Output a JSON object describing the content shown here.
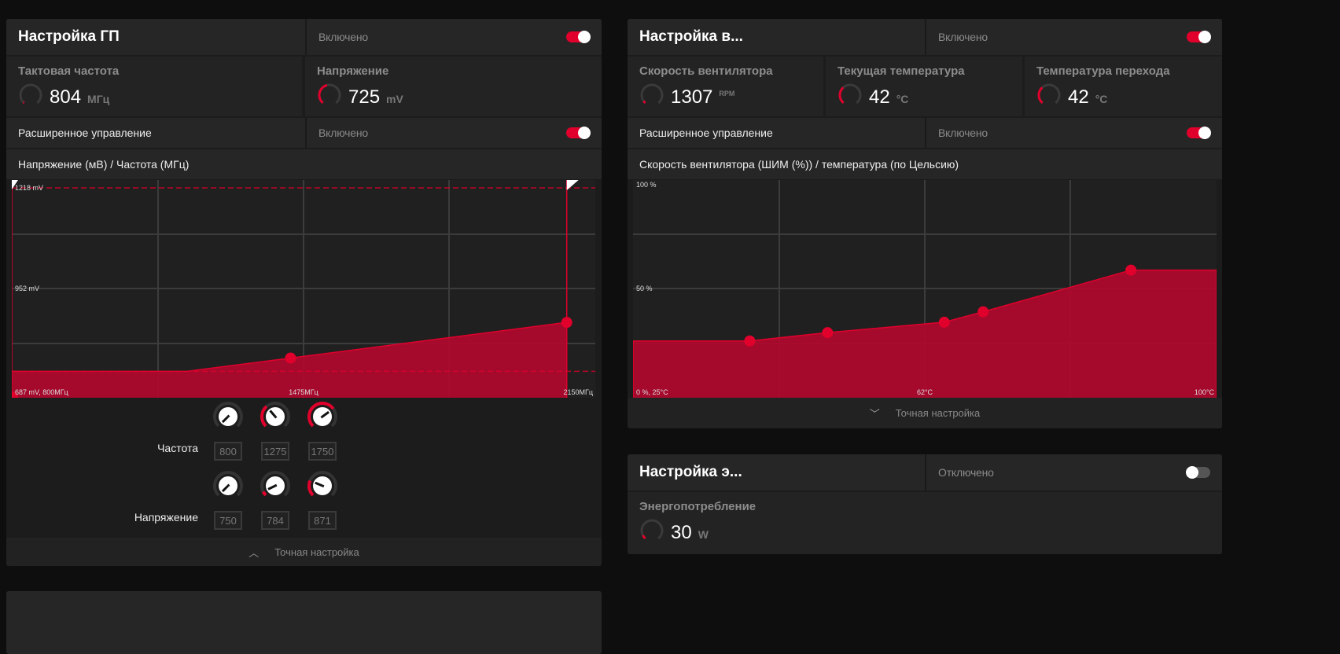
{
  "accent": "#e0002b",
  "fill": "#ad0a2e",
  "gpu": {
    "title": "Настройка ГП",
    "status": "Включено",
    "enabled": true,
    "stats": [
      {
        "label": "Тактовая частота",
        "value": "804",
        "unit": "МГц",
        "gauge": 0.02
      },
      {
        "label": "Напряжение",
        "value": "725",
        "unit": "mV",
        "gauge": 0.45
      }
    ],
    "advanced": {
      "label": "Расширенное управление",
      "status": "Включено",
      "enabled": true
    },
    "chart_title": "Напряжение (мВ) / Частота (МГц)",
    "footer": "Точная настройка",
    "knobs": {
      "freq_label": "Частота",
      "freq": [
        {
          "value": "800",
          "level": 0
        },
        {
          "value": "1275",
          "level": 0.35
        },
        {
          "value": "1750",
          "level": 0.7
        }
      ],
      "volt_label": "Напряжение",
      "volt": [
        {
          "value": "750",
          "level": 0
        },
        {
          "value": "784",
          "level": 0.07
        },
        {
          "value": "871",
          "level": 0.25
        }
      ]
    }
  },
  "fan": {
    "title": "Настройка в...",
    "status": "Включено",
    "enabled": true,
    "stats": [
      {
        "label": "Скорость вентилятора",
        "value": "1307",
        "unit": "RPM",
        "gauge": 0.05
      },
      {
        "label": "Текущая температура",
        "value": "42",
        "unit": "°C",
        "gauge": 0.35
      },
      {
        "label": "Температура перехода",
        "value": "42",
        "unit": "°C",
        "gauge": 0.35
      }
    ],
    "advanced": {
      "label": "Расширенное управление",
      "status": "Включено",
      "enabled": true
    },
    "chart_title": "Скорость вентилятора (ШИМ (%)) / температура (по Цельсию)",
    "footer": "Точная настройка"
  },
  "power": {
    "title": "Настройка э...",
    "status": "Отключено",
    "enabled": false,
    "stats": [
      {
        "label": "Энергопотребление",
        "value": "30",
        "unit": "W",
        "gauge": 0.08
      }
    ]
  },
  "chart_data": [
    {
      "type": "area",
      "xlim": [
        800,
        2150
      ],
      "ylim": [
        687,
        1218
      ],
      "labels": {
        "top": "1218 mV",
        "mid": "952 mV",
        "origin": "687 mV, 800МГц",
        "xmid": "1475МГц",
        "xmax": "2150МГц"
      },
      "limits": {
        "max_voltage": 1218,
        "min_voltage": 734,
        "min_freq": 800,
        "max_freq": 2084
      },
      "points": [
        {
          "x": 800,
          "y": 734
        },
        {
          "x": 1206,
          "y": 734
        },
        {
          "x": 1445,
          "y": 769
        },
        {
          "x": 2084,
          "y": 863
        }
      ]
    },
    {
      "type": "area",
      "xlim": [
        25,
        100
      ],
      "ylim": [
        0,
        100
      ],
      "labels": {
        "top": "100 %",
        "mid": "50 %",
        "origin": "0 %, 25°C",
        "xmid": "62°C",
        "xmax": "100°C"
      },
      "points": [
        {
          "x": 40,
          "y": 25
        },
        {
          "x": 50,
          "y": 29
        },
        {
          "x": 65,
          "y": 34
        },
        {
          "x": 70,
          "y": 39
        },
        {
          "x": 89,
          "y": 59
        }
      ]
    }
  ]
}
